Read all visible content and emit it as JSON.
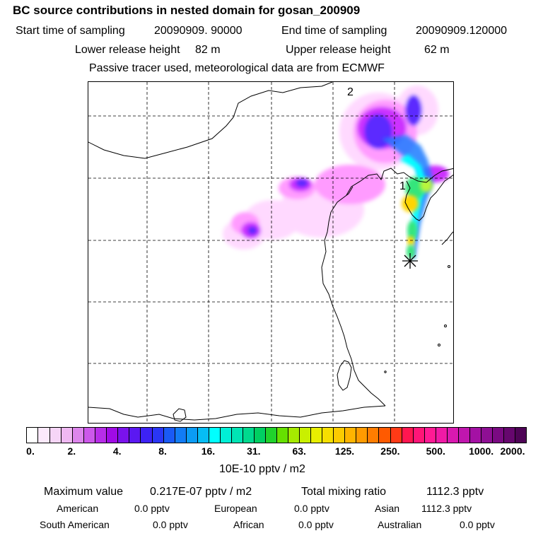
{
  "header": {
    "title": "BC  source contributions in nested domain for gosan_200909",
    "start_label": "Start time of sampling",
    "start_value": "20090909. 90000",
    "end_label": "End time of sampling",
    "end_value": "20090909.120000",
    "lower_label": "Lower release height",
    "lower_value": "82 m",
    "upper_label": "Upper release height",
    "upper_value": "62 m",
    "tracer_note": "Passive tracer used, meteorological data are from ECMWF"
  },
  "map": {
    "label_1": "1",
    "label_2": "2",
    "receptor": "gosan",
    "palette": [
      "#ffd9ff",
      "#ff9bff",
      "#cc33ff",
      "#5b29ff",
      "#1f7cff",
      "#00ffff",
      "#34e57c",
      "#b9f53a",
      "#ffd500",
      "#ff7a00",
      "#ff2a7f",
      "#a4107d"
    ]
  },
  "colorbar": {
    "ticks": [
      "0.",
      "2.",
      "4.",
      "8.",
      "16.",
      "31.",
      "63.",
      "125.",
      "250.",
      "500.",
      "1000.",
      "2000."
    ],
    "colors": [
      [
        "#ffffff",
        "#fbe9fb",
        "#f6d5f7",
        "#efb8f2"
      ],
      [
        "#dd86ec",
        "#cc58ea",
        "#b72de8",
        "#a00be6"
      ],
      [
        "#7a12ec",
        "#5b18f2",
        "#3d22f5",
        "#2a36f5"
      ],
      [
        "#1a5af5",
        "#127cf5",
        "#0b9cf5",
        "#06bdf5"
      ],
      [
        "#00ffff",
        "#00f0d6",
        "#00e4b4",
        "#00d98e"
      ],
      [
        "#00cf62",
        "#20d22c",
        "#66e000",
        "#a5ea00"
      ],
      [
        "#c9f000",
        "#e8ef00",
        "#f6df00",
        "#fccb00"
      ],
      [
        "#ffb400",
        "#ff9b00",
        "#ff7d00",
        "#ff5a00"
      ],
      [
        "#ff3a16",
        "#ff1650",
        "#ff1577",
        "#ff1a94"
      ],
      [
        "#f01aa6",
        "#d919b0",
        "#c016ae",
        "#a411a4"
      ],
      [
        "#8e0f94",
        "#7a0a82",
        "#66076e",
        "#4e0456"
      ]
    ],
    "unit": "10E-10 pptv / m2"
  },
  "stats": {
    "max_label": "Maximum value",
    "max_value": "0.217E-07 pptv / m2",
    "total_label": "Total mixing ratio",
    "total_value": "1112.3 pptv",
    "regions": [
      {
        "name": "American",
        "value": "0.0 pptv"
      },
      {
        "name": "European",
        "value": "0.0 pptv"
      },
      {
        "name": "Asian",
        "value": "1112.3 pptv"
      },
      {
        "name": "South American",
        "value": "0.0 pptv"
      },
      {
        "name": "African",
        "value": "0.0 pptv"
      },
      {
        "name": "Australian",
        "value": "0.0 pptv"
      }
    ]
  }
}
